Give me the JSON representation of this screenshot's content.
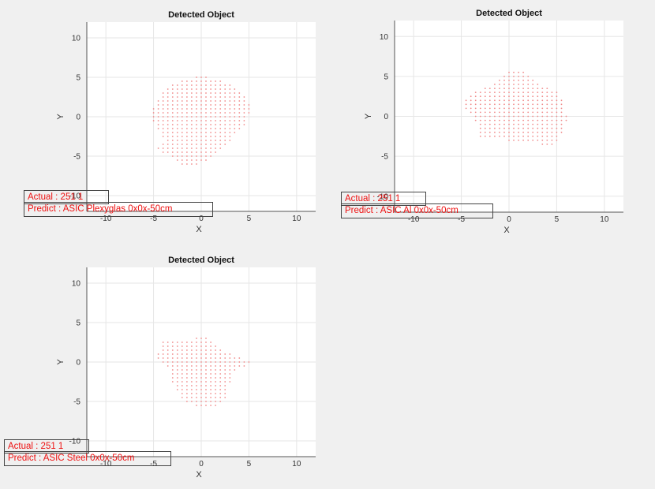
{
  "chart_data": [
    {
      "type": "scatter",
      "title": "Detected Object",
      "xlabel": "X",
      "ylabel": "Y",
      "xlim": [
        -12,
        12
      ],
      "ylim": [
        -12,
        12
      ],
      "xticks": [
        -10,
        -5,
        0,
        5,
        10
      ],
      "yticks": [
        -10,
        -5,
        0,
        5,
        10
      ],
      "grid": true,
      "color": "#f08a8a",
      "shape_rows": [
        [
          5.0,
          -0.5,
          0.5
        ],
        [
          4.5,
          -2,
          2
        ],
        [
          4.0,
          -3,
          3
        ],
        [
          3.5,
          -3.5,
          3.5
        ],
        [
          3.0,
          -4,
          4
        ],
        [
          2.5,
          -4,
          4.5
        ],
        [
          2.0,
          -4.5,
          4.5
        ],
        [
          1.5,
          -4.5,
          5
        ],
        [
          1.0,
          -5,
          5
        ],
        [
          0.5,
          -5,
          5
        ],
        [
          0.0,
          -5,
          4.5
        ],
        [
          -0.5,
          -5,
          4.5
        ],
        [
          -1.0,
          -4.5,
          4.5
        ],
        [
          -1.5,
          -4.5,
          4
        ],
        [
          -2.0,
          -4,
          3.5
        ],
        [
          -2.5,
          -4,
          3
        ],
        [
          -3.0,
          -3.5,
          3
        ],
        [
          -3.5,
          -4,
          2.5
        ],
        [
          -4.0,
          -4.5,
          2
        ],
        [
          -4.5,
          -4,
          1.5
        ],
        [
          -5.0,
          -3,
          1
        ],
        [
          -5.5,
          -2.5,
          0.5
        ],
        [
          -6.0,
          -2,
          -0.5
        ]
      ],
      "annotations": [
        "Actual : 251 1",
        "Predict : ASIC Plexyglas 0x0x-50cm"
      ]
    },
    {
      "type": "scatter",
      "title": "Detected Object",
      "xlabel": "X",
      "ylabel": "Y",
      "xlim": [
        -12,
        12
      ],
      "ylim": [
        -12,
        12
      ],
      "xticks": [
        -10,
        -5,
        0,
        5,
        10
      ],
      "yticks": [
        -10,
        -5,
        0,
        5,
        10
      ],
      "grid": true,
      "color": "#f08a8a",
      "shape_rows": [
        [
          5.5,
          0,
          1.5
        ],
        [
          5.0,
          -0.5,
          2
        ],
        [
          4.5,
          -1,
          2.5
        ],
        [
          4.0,
          -1.5,
          3
        ],
        [
          3.5,
          -2.5,
          4
        ],
        [
          3.0,
          -3.5,
          5
        ],
        [
          2.5,
          -4,
          5
        ],
        [
          2.0,
          -4.5,
          5.5
        ],
        [
          1.5,
          -4.5,
          5.5
        ],
        [
          1.0,
          -4.5,
          5.5
        ],
        [
          0.5,
          -4,
          5.5
        ],
        [
          0.0,
          -3.5,
          6
        ],
        [
          -0.5,
          -3.5,
          6
        ],
        [
          -1.0,
          -3,
          5.5
        ],
        [
          -1.5,
          -3,
          5.5
        ],
        [
          -2.0,
          -3,
          5.5
        ],
        [
          -2.5,
          -3,
          5
        ],
        [
          -3.0,
          0,
          5
        ],
        [
          -3.5,
          3.5,
          4.5
        ]
      ],
      "annotations": [
        "Actual : 251 1",
        "Predict : ASIC Al 0x0x-50cm"
      ]
    },
    {
      "type": "scatter",
      "title": "Detected Object",
      "xlabel": "X",
      "ylabel": "Y",
      "xlim": [
        -12,
        12
      ],
      "ylim": [
        -12,
        12
      ],
      "xticks": [
        -10,
        -5,
        0,
        5,
        10
      ],
      "yticks": [
        -10,
        -5,
        0,
        5,
        10
      ],
      "grid": true,
      "color": "#f08a8a",
      "shape_rows": [
        [
          3.0,
          -0.5,
          0.5
        ],
        [
          2.5,
          -4,
          1
        ],
        [
          2.0,
          -4,
          1.5
        ],
        [
          1.5,
          -4,
          2
        ],
        [
          1.0,
          -4.5,
          3
        ],
        [
          0.5,
          -4.5,
          4
        ],
        [
          0.0,
          -4,
          5
        ],
        [
          -0.5,
          -3.5,
          4.5
        ],
        [
          -1.0,
          -3,
          3.5
        ],
        [
          -1.5,
          -3,
          3
        ],
        [
          -2.0,
          -3,
          3
        ],
        [
          -2.5,
          -3,
          3
        ],
        [
          -3.0,
          -2.5,
          2.5
        ],
        [
          -3.5,
          -2.5,
          2.5
        ],
        [
          -4.0,
          -2,
          2.5
        ],
        [
          -4.5,
          -2,
          2.5
        ],
        [
          -5.0,
          -1.5,
          2
        ],
        [
          -5.5,
          -0.5,
          1.5
        ]
      ],
      "annotations": [
        "Actual : 251 1",
        "Predict : ASIC Steel 0x0x-50cm"
      ]
    }
  ]
}
